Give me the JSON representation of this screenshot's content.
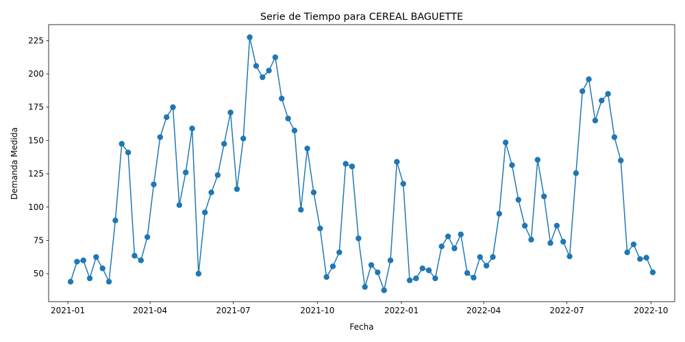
{
  "chart_data": {
    "type": "line",
    "title": "Serie de Tiempo para CEREAL BAGUETTE",
    "xlabel": "Fecha",
    "ylabel": "Demanda Medida",
    "x_start": "2021-01-04",
    "x_interval_days": 7,
    "xlim": [
      "2020-12-11",
      "2022-10-27"
    ],
    "ylim": [
      29,
      237
    ],
    "x_ticks": [
      {
        "label": "2021-01",
        "date": "2021-01-01"
      },
      {
        "label": "2021-04",
        "date": "2021-04-01"
      },
      {
        "label": "2021-07",
        "date": "2021-07-01"
      },
      {
        "label": "2021-10",
        "date": "2021-10-01"
      },
      {
        "label": "2022-01",
        "date": "2022-01-01"
      },
      {
        "label": "2022-04",
        "date": "2022-04-01"
      },
      {
        "label": "2022-07",
        "date": "2022-07-01"
      },
      {
        "label": "2022-10",
        "date": "2022-10-01"
      }
    ],
    "y_ticks": [
      {
        "label": "50",
        "value": 50
      },
      {
        "label": "75",
        "value": 75
      },
      {
        "label": "100",
        "value": 100
      },
      {
        "label": "125",
        "value": 125
      },
      {
        "label": "150",
        "value": 150
      },
      {
        "label": "175",
        "value": 175
      },
      {
        "label": "200",
        "value": 200
      },
      {
        "label": "225",
        "value": 225
      }
    ],
    "series": [
      {
        "color": "#1f77b4",
        "values": [
          44,
          59,
          60,
          46.5,
          62.5,
          54,
          44,
          90,
          147.5,
          141,
          63.5,
          60,
          77.5,
          117,
          152.5,
          167.5,
          175,
          101.5,
          126,
          159,
          50,
          96,
          111,
          124,
          147.5,
          171,
          113.5,
          151.5,
          227.5,
          206,
          197.5,
          202.5,
          212.5,
          181.5,
          166.5,
          157.5,
          98,
          144,
          111,
          84,
          47.5,
          55.5,
          66,
          132.5,
          130.5,
          76.5,
          40,
          56.5,
          51,
          37.5,
          60,
          134,
          117.5,
          45,
          46.5,
          54,
          52.5,
          46.5,
          70.5,
          78,
          69,
          79.5,
          50.5,
          47,
          62.5,
          56,
          62.5,
          95,
          148.5,
          131.5,
          105.5,
          86,
          75.5,
          135.5,
          108,
          73,
          86,
          74,
          63,
          125.5,
          187,
          196,
          165,
          180,
          185,
          152.5,
          135,
          66,
          72,
          61,
          62,
          51
        ]
      }
    ]
  }
}
